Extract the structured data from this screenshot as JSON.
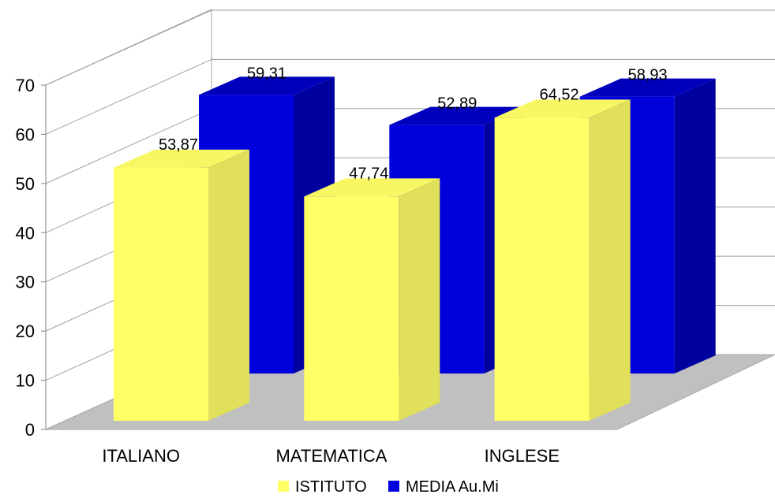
{
  "chart_data": {
    "type": "bar",
    "three_d": true,
    "categories": [
      "ITALIANO",
      "MATEMATICA",
      "INGLESE"
    ],
    "series": [
      {
        "name": "ISTITUTO",
        "values": [
          53.87,
          47.74,
          64.52
        ],
        "labels": [
          "53,87",
          "47,74",
          "64,52"
        ],
        "color": "#ffff66"
      },
      {
        "name": "MEDIA Au.Mi",
        "values": [
          59.31,
          52.89,
          58.93
        ],
        "labels": [
          "59,31",
          "52,89",
          "58,93"
        ],
        "color": "#0000dd"
      }
    ],
    "ylim": [
      0,
      70
    ],
    "yticks": [
      0,
      10,
      20,
      30,
      40,
      50,
      60,
      70
    ],
    "grid": true,
    "legend": "bottom",
    "floor_color": "#c0c0c0"
  }
}
